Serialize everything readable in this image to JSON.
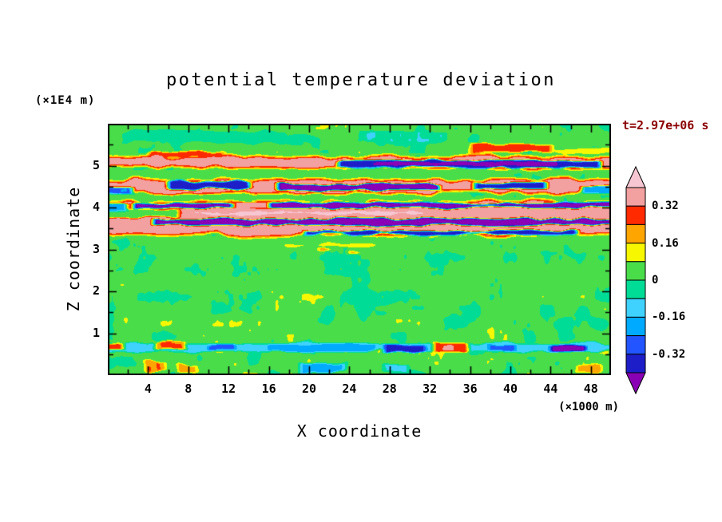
{
  "chart_data": {
    "type": "heatmap",
    "title": "potential temperature deviation",
    "annotation": "t=2.97e+06 s",
    "xlabel": "X coordinate",
    "ylabel": "Z coordinate",
    "x_unit_label": "(×1000 m)",
    "y_unit_label": "(×1E4 m)",
    "x_range": [
      0,
      50
    ],
    "z_range": [
      0,
      6
    ],
    "x_ticks": [
      4,
      8,
      12,
      16,
      20,
      24,
      28,
      32,
      36,
      40,
      44,
      48
    ],
    "x_minor_step": 2,
    "z_ticks": [
      1,
      2,
      3,
      4,
      5
    ],
    "z_minor_step": 0.5,
    "levels": [
      -0.4,
      -0.32,
      -0.24,
      -0.16,
      -0.08,
      0,
      0.08,
      0.16,
      0.24,
      0.32,
      0.4
    ],
    "colors": [
      "#8A00B4",
      "#1E1EC8",
      "#2255FF",
      "#00AAFF",
      "#3FD2FF",
      "#00DC96",
      "#4ADD4A",
      "#F7F700",
      "#FFA500",
      "#FF2A00",
      "#F2A0A0",
      "#F6C6D2"
    ],
    "colorbar_ticks": [
      {
        "label": "0.32",
        "value": 0.32
      },
      {
        "label": "0.16",
        "value": 0.16
      },
      {
        "label": "0",
        "value": 0
      },
      {
        "label": "-0.16",
        "value": -0.16
      },
      {
        "label": "-0.32",
        "value": -0.32
      }
    ],
    "frame_color": "#000000",
    "field": {
      "background": 0.025,
      "noise": {
        "coarse_scale": [
          0.55,
          3.2
        ],
        "fine_scale": [
          2.2,
          7.5
        ],
        "fine_amp": 0.018,
        "amp_zones": [
          [
            2,
            0.065
          ],
          [
            3.3,
            0.045
          ],
          [
            5.3,
            0.03
          ],
          [
            99,
            0.05
          ]
        ]
      },
      "features": [
        {
          "x": [
            1,
            18
          ],
          "z": [
            5.52,
            5.85
          ],
          "v": -0.06,
          "w": 0.08
        },
        {
          "x": [
            25,
            34
          ],
          "z": [
            5.55,
            5.85
          ],
          "v": -0.07,
          "w": 0.06
        },
        {
          "x": [
            35.5,
            44.5
          ],
          "z": [
            5.28,
            5.54
          ],
          "v": 0.27,
          "w": 0.05
        },
        {
          "x": [
            3.5,
            12
          ],
          "z": [
            5.16,
            5.36
          ],
          "v": 0.27,
          "w": 0.05
        },
        {
          "x": [
            44,
            50
          ],
          "z": [
            5.26,
            5.46
          ],
          "v": 0.12,
          "w": 0.05
        },
        {
          "x": [
            0,
            50
          ],
          "z": [
            4.88,
            5.28
          ],
          "v": 0.36,
          "w": 0.08,
          "e": 0.13
        },
        {
          "x": [
            22.5,
            49.5
          ],
          "z": [
            4.92,
            5.16
          ],
          "v": -0.36,
          "w": 0.05
        },
        {
          "x": [
            26,
            45
          ],
          "z": [
            4.96,
            5.12
          ],
          "v": -0.47,
          "w": 0.04
        },
        {
          "x": [
            0,
            31
          ],
          "z": [
            4.7,
            4.9
          ],
          "v": 0.03,
          "w": 0.07
        },
        {
          "x": [
            0,
            50
          ],
          "z": [
            4.28,
            4.74
          ],
          "v": 0.36,
          "w": 0.08,
          "e": 0.13
        },
        {
          "x": [
            5.5,
            14.5
          ],
          "z": [
            4.42,
            4.66
          ],
          "v": -0.38,
          "w": 0.05
        },
        {
          "x": [
            16.5,
            33.5
          ],
          "z": [
            4.38,
            4.6
          ],
          "v": -0.47,
          "w": 0.05
        },
        {
          "x": [
            36,
            44
          ],
          "z": [
            4.42,
            4.62
          ],
          "v": -0.37,
          "w": 0.04
        },
        {
          "x": [
            46.8,
            50
          ],
          "z": [
            4.3,
            4.56
          ],
          "v": -0.22,
          "w": 0.04
        },
        {
          "x": [
            0,
            3
          ],
          "z": [
            4.28,
            4.5
          ],
          "v": -0.25,
          "w": 0.04
        },
        {
          "x": [
            0,
            50
          ],
          "z": [
            3.28,
            4.2
          ],
          "v": 0.36,
          "w": 0.09,
          "e": 0.14
        },
        {
          "x": [
            0,
            22
          ],
          "z": [
            4.18,
            4.32
          ],
          "v": 0.02,
          "w": 0.06
        },
        {
          "x": [
            0,
            7.5
          ],
          "z": [
            3.74,
            3.98
          ],
          "v": 0.02,
          "w": 0.06
        },
        {
          "x": [
            2,
            50
          ],
          "z": [
            3.96,
            4.14
          ],
          "v": -0.44,
          "w": 0.05
        },
        {
          "x": [
            12,
            16.5
          ],
          "z": [
            3.92,
            4.18
          ],
          "v": 0.34,
          "w": 0.04
        },
        {
          "x": [
            0,
            2.5
          ],
          "z": [
            3.88,
            4.12
          ],
          "v": -0.18,
          "w": 0.04
        },
        {
          "x": [
            4,
            50
          ],
          "z": [
            3.54,
            3.76
          ],
          "v": -0.47,
          "w": 0.05
        },
        {
          "x": [
            8,
            32
          ],
          "z": [
            3.8,
            3.92
          ],
          "v": 0.43,
          "w": 0.05
        },
        {
          "x": [
            19,
            47
          ],
          "z": [
            3.32,
            3.48
          ],
          "v": -0.38,
          "w": 0.05
        },
        {
          "x": [
            17,
            27
          ],
          "z": [
            3.02,
            3.16
          ],
          "v": 0.13,
          "w": 0.05
        },
        {
          "x": [
            20.5,
            22.5
          ],
          "z": [
            2.92,
            3.06
          ],
          "v": 0.2,
          "w": 0.03
        },
        {
          "x": [
            23.5,
            25.5
          ],
          "z": [
            2.86,
            3.0
          ],
          "v": 0.18,
          "w": 0.03
        },
        {
          "x": [
            0,
            50
          ],
          "z": [
            0.54,
            0.8
          ],
          "v": -0.12,
          "w": 0.06
        },
        {
          "x": [
            15.5,
            27
          ],
          "z": [
            0.54,
            0.76
          ],
          "v": -0.22,
          "w": 0.05
        },
        {
          "x": [
            27,
            32
          ],
          "z": [
            0.52,
            0.74
          ],
          "v": -0.37,
          "w": 0.04
        },
        {
          "x": [
            9.5,
            13
          ],
          "z": [
            0.56,
            0.76
          ],
          "v": -0.3,
          "w": 0.04
        },
        {
          "x": [
            43.5,
            48
          ],
          "z": [
            0.52,
            0.76
          ],
          "v": -0.46,
          "w": 0.04
        },
        {
          "x": [
            37.5,
            41
          ],
          "z": [
            0.55,
            0.77
          ],
          "v": -0.3,
          "w": 0.04
        },
        {
          "x": [
            4.2,
            8.2
          ],
          "z": [
            0.58,
            0.84
          ],
          "v": 0.24,
          "w": 0.05
        },
        {
          "x": [
            32,
            36.2
          ],
          "z": [
            0.52,
            0.8
          ],
          "v": 0.3,
          "w": 0.05
        },
        {
          "x": [
            33,
            34.8
          ],
          "z": [
            0.58,
            0.74
          ],
          "v": 0.37,
          "w": 0.03
        },
        {
          "x": [
            0,
            2
          ],
          "z": [
            0.58,
            0.78
          ],
          "v": 0.3,
          "w": 0.03
        },
        {
          "x": [
            3.2,
            6.2
          ],
          "z": [
            0.04,
            0.36
          ],
          "v": 0.24,
          "w": 0.06
        },
        {
          "x": [
            6.5,
            9.3
          ],
          "z": [
            0.02,
            0.28
          ],
          "v": 0.22,
          "w": 0.05
        },
        {
          "x": [
            18.5,
            24
          ],
          "z": [
            0.02,
            0.32
          ],
          "v": -0.18,
          "w": 0.06
        },
        {
          "x": [
            46.3,
            49.3
          ],
          "z": [
            0.03,
            0.27
          ],
          "v": 0.22,
          "w": 0.05
        },
        {
          "x": [
            27,
            30.5
          ],
          "z": [
            0.05,
            0.27
          ],
          "v": -0.1,
          "w": 0.05
        }
      ]
    }
  }
}
